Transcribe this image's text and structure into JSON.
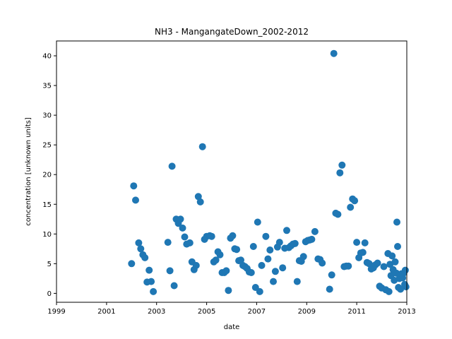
{
  "chart_data": {
    "type": "scatter",
    "title": "NH3 - MangangateDown_2002-2012",
    "xlabel": "date",
    "ylabel": "concentration [unknown units]",
    "xlim": [
      "1999-01-01",
      "2013-01-01"
    ],
    "ylim": [
      -1.5,
      42.5
    ],
    "x_ticks": [
      "1999",
      "2001",
      "2003",
      "2005",
      "2007",
      "2009",
      "2011",
      "2013"
    ],
    "y_ticks": [
      "0",
      "5",
      "10",
      "15",
      "20",
      "25",
      "30",
      "35",
      "40"
    ],
    "grid": false,
    "marker_color": "#1f77b4",
    "series": [
      {
        "points": [
          [
            "2002-01-01",
            5.0
          ],
          [
            "2002-02-01",
            18.1
          ],
          [
            "2002-03-01",
            15.7
          ],
          [
            "2002-04-15",
            8.5
          ],
          [
            "2002-05-15",
            7.5
          ],
          [
            "2002-06-15",
            6.5
          ],
          [
            "2002-07-15",
            6.0
          ],
          [
            "2002-08-15",
            1.9
          ],
          [
            "2002-09-15",
            3.9
          ],
          [
            "2002-10-15",
            2.0
          ],
          [
            "2002-11-15",
            0.3
          ],
          [
            "2003-06-15",
            8.6
          ],
          [
            "2003-07-15",
            3.8
          ],
          [
            "2003-08-15",
            21.4
          ],
          [
            "2003-09-15",
            1.3
          ],
          [
            "2003-10-15",
            12.5
          ],
          [
            "2003-11-15",
            11.8
          ],
          [
            "2003-12-15",
            12.5
          ],
          [
            "2004-01-15",
            11.0
          ],
          [
            "2004-02-15",
            9.5
          ],
          [
            "2004-03-15",
            8.3
          ],
          [
            "2004-05-01",
            8.5
          ],
          [
            "2004-06-01",
            5.3
          ],
          [
            "2004-07-01",
            4.0
          ],
          [
            "2004-08-01",
            4.7
          ],
          [
            "2004-09-01",
            16.3
          ],
          [
            "2004-10-01",
            15.4
          ],
          [
            "2004-11-01",
            24.7
          ],
          [
            "2004-12-01",
            9.1
          ],
          [
            "2005-01-01",
            9.6
          ],
          [
            "2005-02-15",
            9.7
          ],
          [
            "2005-03-15",
            9.6
          ],
          [
            "2005-04-15",
            5.3
          ],
          [
            "2005-05-15",
            5.6
          ],
          [
            "2005-06-15",
            7.0
          ],
          [
            "2005-07-15",
            6.5
          ],
          [
            "2005-08-15",
            3.5
          ],
          [
            "2005-09-15",
            3.5
          ],
          [
            "2005-10-15",
            3.8
          ],
          [
            "2005-11-15",
            0.5
          ],
          [
            "2005-12-15",
            9.3
          ],
          [
            "2006-01-15",
            9.7
          ],
          [
            "2006-02-15",
            7.5
          ],
          [
            "2006-03-15",
            7.4
          ],
          [
            "2006-04-15",
            5.5
          ],
          [
            "2006-05-15",
            5.6
          ],
          [
            "2006-06-15",
            4.7
          ],
          [
            "2006-07-15",
            4.5
          ],
          [
            "2006-08-15",
            4.2
          ],
          [
            "2006-09-15",
            3.6
          ],
          [
            "2006-10-15",
            3.5
          ],
          [
            "2006-11-15",
            7.9
          ],
          [
            "2006-12-15",
            1.0
          ],
          [
            "2007-01-15",
            12.0
          ],
          [
            "2007-02-15",
            0.3
          ],
          [
            "2007-03-15",
            4.7
          ],
          [
            "2007-05-15",
            9.6
          ],
          [
            "2007-06-15",
            5.8
          ],
          [
            "2007-07-15",
            7.3
          ],
          [
            "2007-09-01",
            2.0
          ],
          [
            "2007-10-01",
            3.7
          ],
          [
            "2007-11-01",
            7.8
          ],
          [
            "2007-12-01",
            8.6
          ],
          [
            "2008-01-15",
            4.3
          ],
          [
            "2008-02-15",
            7.6
          ],
          [
            "2008-03-15",
            10.6
          ],
          [
            "2008-04-15",
            7.7
          ],
          [
            "2008-05-15",
            8.0
          ],
          [
            "2008-06-15",
            8.3
          ],
          [
            "2008-07-15",
            8.4
          ],
          [
            "2008-08-15",
            2.0
          ],
          [
            "2008-09-15",
            5.5
          ],
          [
            "2008-10-15",
            5.4
          ],
          [
            "2008-11-15",
            6.2
          ],
          [
            "2008-12-15",
            8.7
          ],
          [
            "2009-01-15",
            8.9
          ],
          [
            "2009-02-15",
            9.0
          ],
          [
            "2009-03-15",
            9.1
          ],
          [
            "2009-05-01",
            10.4
          ],
          [
            "2009-06-15",
            5.8
          ],
          [
            "2009-07-15",
            5.7
          ],
          [
            "2009-08-15",
            5.1
          ],
          [
            "2009-12-01",
            0.7
          ],
          [
            "2010-01-01",
            3.1
          ],
          [
            "2010-02-01",
            40.4
          ],
          [
            "2010-03-01",
            13.5
          ],
          [
            "2010-04-01",
            13.3
          ],
          [
            "2010-05-01",
            20.3
          ],
          [
            "2010-06-01",
            21.6
          ],
          [
            "2010-07-01",
            4.5
          ],
          [
            "2010-08-01",
            4.6
          ],
          [
            "2010-09-01",
            4.6
          ],
          [
            "2010-10-01",
            14.5
          ],
          [
            "2010-11-01",
            15.9
          ],
          [
            "2010-12-01",
            15.6
          ],
          [
            "2011-01-01",
            8.6
          ],
          [
            "2011-02-01",
            6.0
          ],
          [
            "2011-03-01",
            6.8
          ],
          [
            "2011-04-01",
            6.9
          ],
          [
            "2011-05-01",
            8.5
          ],
          [
            "2011-06-01",
            5.2
          ],
          [
            "2011-07-01",
            5.0
          ],
          [
            "2011-08-01",
            4.1
          ],
          [
            "2011-09-01",
            4.3
          ],
          [
            "2011-10-01",
            4.8
          ],
          [
            "2011-11-01",
            5.1
          ],
          [
            "2011-12-01",
            1.2
          ],
          [
            "2012-01-01",
            0.9
          ],
          [
            "2012-02-01",
            4.5
          ],
          [
            "2012-03-01",
            0.6
          ],
          [
            "2012-04-01",
            6.7
          ],
          [
            "2012-04-15",
            0.3
          ],
          [
            "2012-05-01",
            4.9
          ],
          [
            "2012-05-15",
            3.0
          ],
          [
            "2012-06-01",
            6.3
          ],
          [
            "2012-06-15",
            4.0
          ],
          [
            "2012-07-01",
            2.2
          ],
          [
            "2012-07-15",
            5.3
          ],
          [
            "2012-08-01",
            3.4
          ],
          [
            "2012-08-10",
            12.0
          ],
          [
            "2012-08-20",
            7.9
          ],
          [
            "2012-09-01",
            1.0
          ],
          [
            "2012-09-15",
            2.5
          ],
          [
            "2012-10-01",
            0.7
          ],
          [
            "2012-10-15",
            3.3
          ],
          [
            "2012-11-01",
            2.6
          ],
          [
            "2012-11-15",
            3.4
          ],
          [
            "2012-12-01",
            1.5
          ],
          [
            "2012-12-10",
            3.9
          ],
          [
            "2012-12-20",
            1.1
          ]
        ]
      }
    ]
  }
}
